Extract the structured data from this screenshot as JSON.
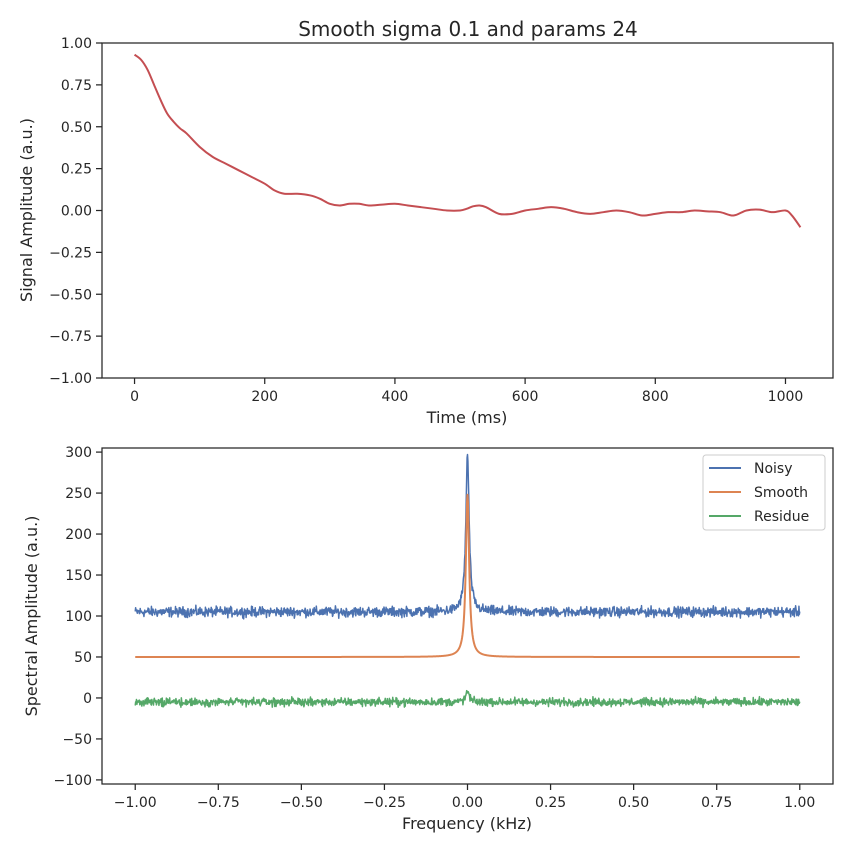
{
  "figure": {
    "title": "Smooth sigma 0.1 and params 24"
  },
  "chart_data": [
    {
      "type": "line",
      "title": "",
      "xlabel": "Time (ms)",
      "ylabel": "Signal Amplitude (a.u.)",
      "xlim": [
        -50,
        1073
      ],
      "ylim": [
        -1.0,
        1.0
      ],
      "xticks": [
        0,
        200,
        400,
        600,
        800,
        1000
      ],
      "yticks": [
        -1.0,
        -0.75,
        -0.5,
        -0.25,
        0.0,
        0.25,
        0.5,
        0.75,
        1.0
      ],
      "xtick_labels": [
        "0",
        "200",
        "400",
        "600",
        "800",
        "1000"
      ],
      "ytick_labels": [
        "−1.00",
        "−0.75",
        "−0.50",
        "−0.25",
        "0.00",
        "0.25",
        "0.50",
        "0.75",
        "1.00"
      ],
      "grid": false,
      "legend": "none",
      "series": [
        {
          "color": "#c44e52",
          "x": [
            0,
            10,
            20,
            30,
            40,
            50,
            60,
            70,
            80,
            100,
            120,
            140,
            160,
            180,
            200,
            215,
            230,
            250,
            270,
            285,
            300,
            315,
            330,
            345,
            360,
            380,
            400,
            420,
            440,
            460,
            480,
            500,
            510,
            520,
            530,
            540,
            560,
            580,
            600,
            620,
            640,
            660,
            680,
            700,
            720,
            740,
            760,
            780,
            800,
            820,
            840,
            860,
            880,
            900,
            920,
            940,
            960,
            980,
            1000,
            1010,
            1023
          ],
          "y": [
            0.93,
            0.9,
            0.84,
            0.75,
            0.66,
            0.58,
            0.53,
            0.49,
            0.46,
            0.38,
            0.32,
            0.28,
            0.24,
            0.2,
            0.16,
            0.12,
            0.1,
            0.1,
            0.09,
            0.07,
            0.04,
            0.03,
            0.04,
            0.04,
            0.03,
            0.035,
            0.04,
            0.03,
            0.02,
            0.01,
            0.0,
            0.0,
            0.01,
            0.025,
            0.03,
            0.02,
            -0.02,
            -0.02,
            0.0,
            0.01,
            0.02,
            0.01,
            -0.01,
            -0.02,
            -0.01,
            0.0,
            -0.01,
            -0.03,
            -0.02,
            -0.01,
            -0.01,
            0.0,
            -0.005,
            -0.01,
            -0.03,
            0.0,
            0.005,
            -0.01,
            0.0,
            -0.03,
            -0.1
          ]
        }
      ]
    },
    {
      "type": "line",
      "title": "",
      "xlabel": "Frequency (kHz)",
      "ylabel": "Spectral Amplitude (a.u.)",
      "xlim": [
        -1.1,
        1.1
      ],
      "ylim": [
        -105,
        305
      ],
      "xticks": [
        -1.0,
        -0.75,
        -0.5,
        -0.25,
        0.0,
        0.25,
        0.5,
        0.75,
        1.0
      ],
      "yticks": [
        -100,
        -50,
        0,
        50,
        100,
        150,
        200,
        250,
        300
      ],
      "xtick_labels": [
        "−1.00",
        "−0.75",
        "−0.50",
        "−0.25",
        "0.00",
        "0.25",
        "0.50",
        "0.75",
        "1.00"
      ],
      "ytick_labels": [
        "−100",
        "−50",
        "0",
        "50",
        "100",
        "150",
        "200",
        "250",
        "300"
      ],
      "grid": false,
      "legend": "top-right",
      "series": [
        {
          "name": "Noisy",
          "color": "#4c72b0",
          "baseline": 105,
          "noise": 5,
          "peak_x": 0.0,
          "peak_y": 297
        },
        {
          "name": "Smooth",
          "color": "#dd8452",
          "baseline": 50,
          "noise": 0,
          "peak_x": 0.0,
          "peak_y": 248
        },
        {
          "name": "Residue",
          "color": "#55a868",
          "baseline": -5,
          "noise": 4,
          "peak_x": 0.0,
          "peak_y": 8
        }
      ]
    }
  ]
}
